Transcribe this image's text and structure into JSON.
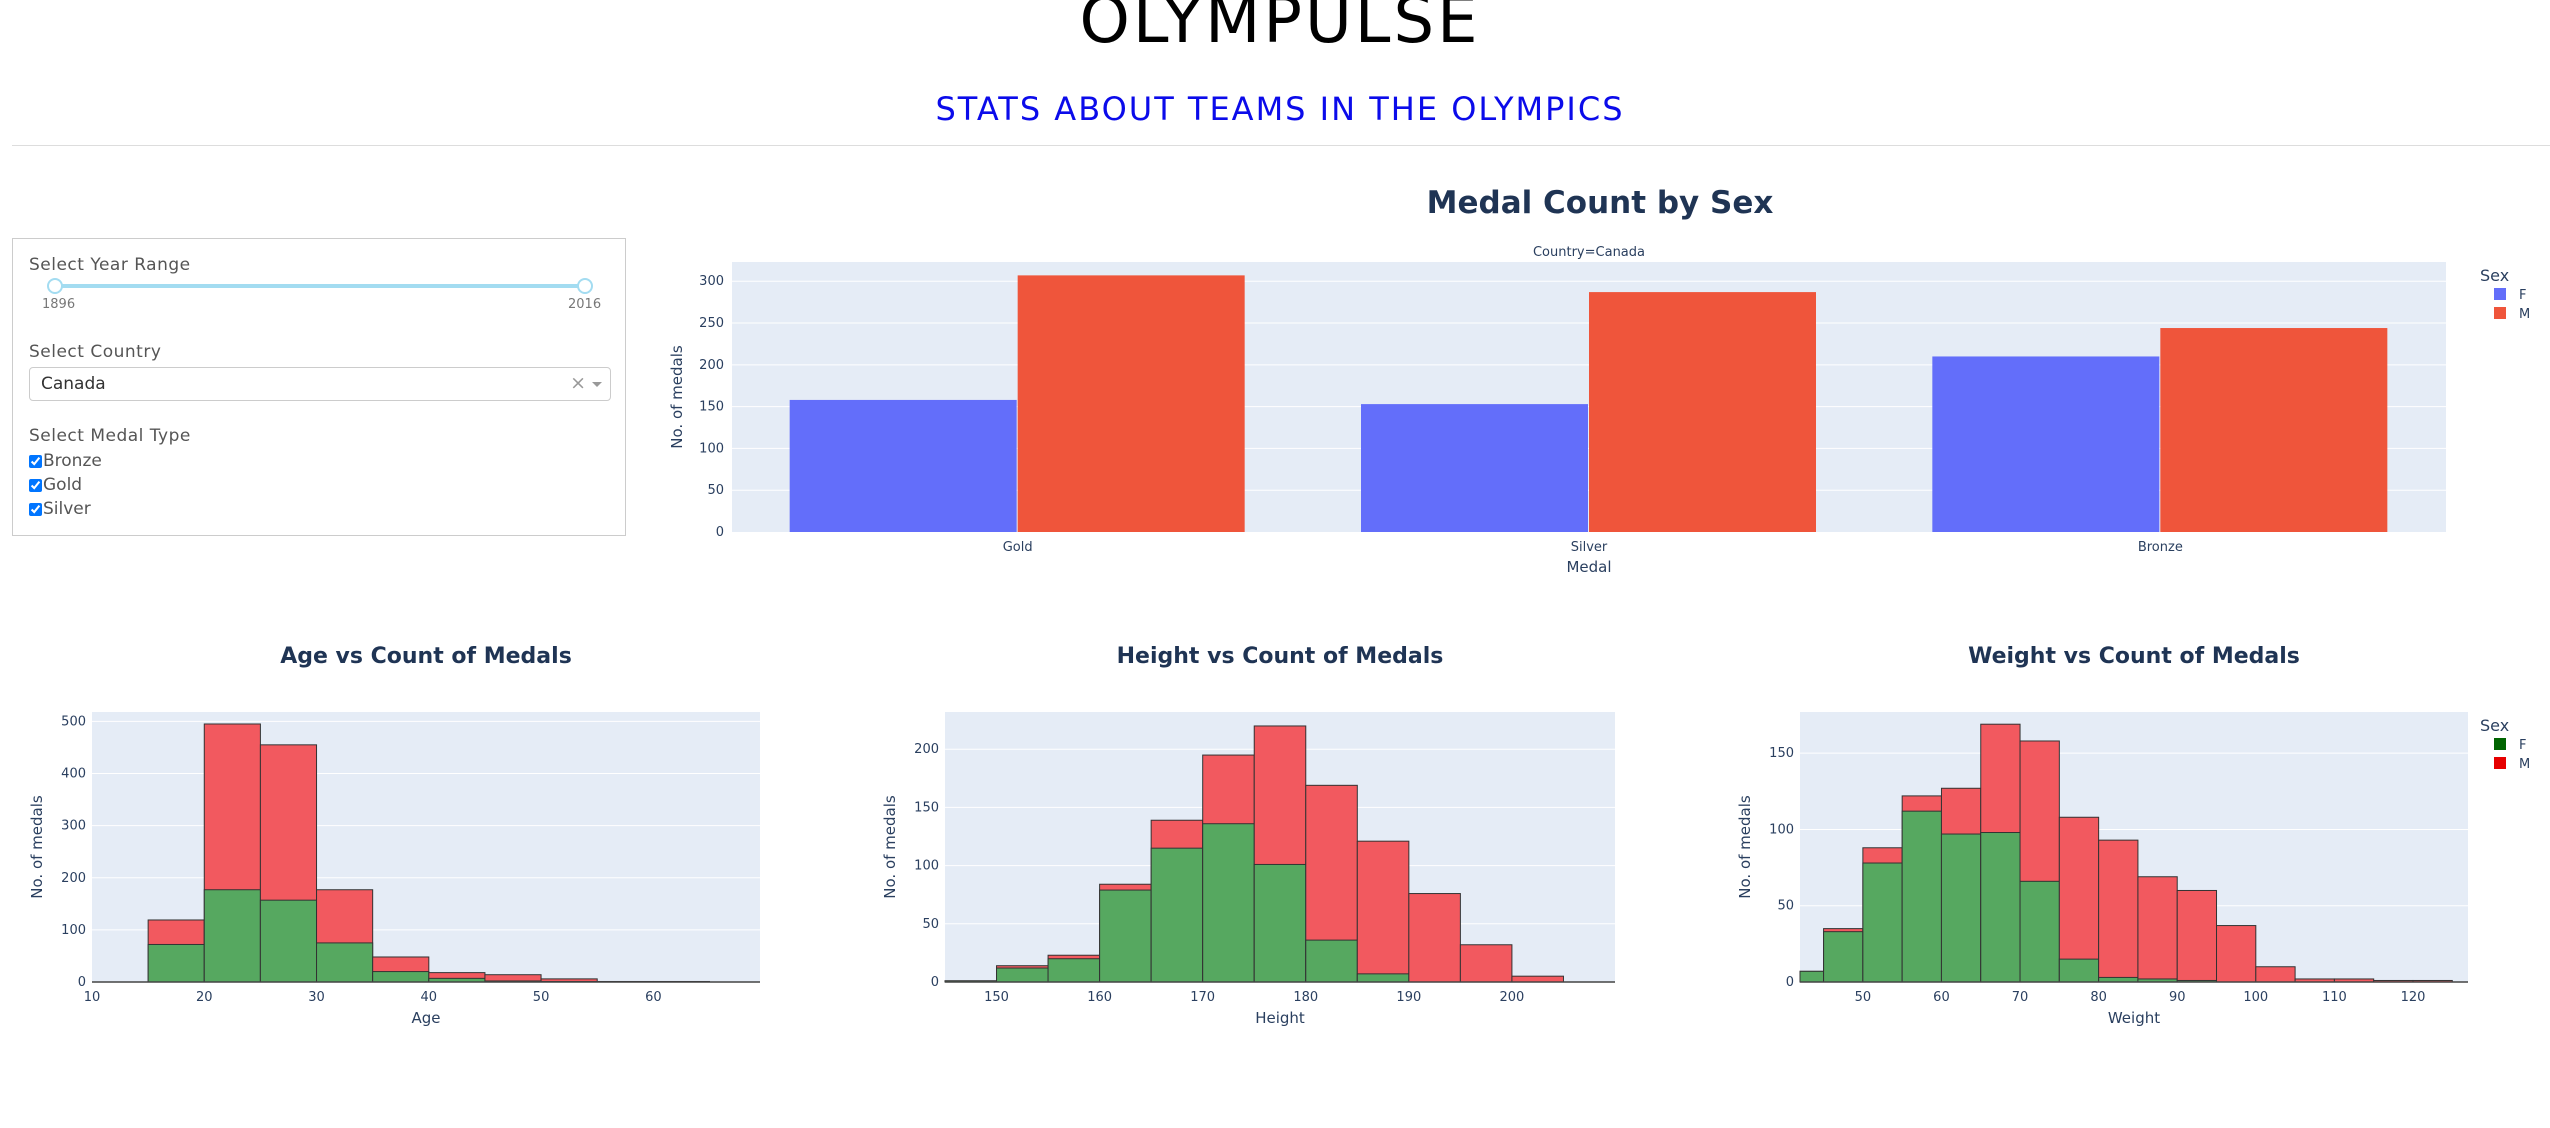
{
  "header": {
    "app_title": "OLYMPULSE",
    "subtitle": "STATS ABOUT TEAMS IN THE OLYMPICS"
  },
  "controls": {
    "year_range_label": "Select Year Range",
    "year_min": "1896",
    "year_max": "2016",
    "country_label": "Select Country",
    "country_value": "Canada",
    "clear_glyph": "×",
    "medal_type_label": "Select Medal Type",
    "medal_options": [
      {
        "label": "Bronze",
        "checked": true
      },
      {
        "label": "Gold",
        "checked": true
      },
      {
        "label": "Silver",
        "checked": true
      }
    ]
  },
  "colors": {
    "bar_f": "#636efa",
    "bar_m": "#ef553b",
    "hist_f": "#56a860",
    "hist_m": "#f2595f",
    "legend_hist_f": "#006400",
    "legend_hist_m": "#e60000",
    "plot_bg": "#e5ecf6",
    "axis_text": "#2a3f5f",
    "title_text": "#1f3454"
  },
  "chart_data": [
    {
      "id": "medal_sex",
      "type": "bar",
      "title": "Medal Count by Sex",
      "facet_label": "Country=Canada",
      "xlabel": "Medal",
      "ylabel": "No. of medals",
      "categories": [
        "Gold",
        "Silver",
        "Bronze"
      ],
      "series": [
        {
          "name": "F",
          "values": [
            158,
            153,
            210
          ]
        },
        {
          "name": "M",
          "values": [
            307,
            287,
            244
          ]
        }
      ],
      "ylim": [
        0,
        323
      ],
      "yticks": [
        0,
        50,
        100,
        150,
        200,
        250,
        300
      ],
      "legend_title": "Sex",
      "legend_position": "top-right"
    },
    {
      "id": "age",
      "type": "bar",
      "title": "Age vs Count of Medals",
      "xlabel": "Age",
      "ylabel": "No. of medals",
      "bin_start": 10,
      "bin_width": 5,
      "series": [
        {
          "name": "F",
          "values": [
            0,
            72,
            177,
            157,
            75,
            20,
            7,
            2,
            1,
            0,
            0,
            0
          ]
        },
        {
          "name": "M",
          "values": [
            0,
            119,
            495,
            455,
            177,
            48,
            18,
            14,
            6,
            1,
            1,
            0
          ]
        }
      ],
      "xlim": [
        10,
        69.5
      ],
      "ylim": [
        0,
        518
      ],
      "xticks": [
        10,
        20,
        30,
        40,
        50,
        60
      ],
      "yticks": [
        0,
        100,
        200,
        300,
        400,
        500
      ]
    },
    {
      "id": "height",
      "type": "bar",
      "title": "Height vs Count of Medals",
      "xlabel": "Height",
      "ylabel": "No. of medals",
      "bin_start": 145,
      "bin_width": 5,
      "series": [
        {
          "name": "F",
          "values": [
            1,
            12,
            20,
            79,
            115,
            136,
            101,
            36,
            7,
            0,
            0,
            0
          ]
        },
        {
          "name": "M",
          "values": [
            1,
            14,
            23,
            84,
            139,
            195,
            220,
            169,
            121,
            76,
            32,
            5
          ]
        }
      ],
      "xlim": [
        145,
        210
      ],
      "ylim": [
        0,
        232
      ],
      "xticks": [
        150,
        160,
        170,
        180,
        190,
        200
      ],
      "yticks": [
        0,
        50,
        100,
        150,
        200
      ]
    },
    {
      "id": "weight",
      "type": "bar",
      "title": "Weight vs Count of Medals",
      "xlabel": "Weight",
      "ylabel": "No. of medals",
      "bin_start": 40,
      "bin_width": 5,
      "series": [
        {
          "name": "F",
          "values": [
            7,
            33,
            78,
            112,
            97,
            98,
            66,
            15,
            3,
            2,
            1,
            0,
            0,
            0,
            0,
            0,
            0
          ]
        },
        {
          "name": "M",
          "values": [
            7,
            35,
            88,
            122,
            127,
            169,
            158,
            108,
            93,
            69,
            60,
            37,
            10,
            2,
            2,
            1,
            1
          ]
        }
      ],
      "xlim": [
        42,
        127
      ],
      "ylim": [
        0,
        177
      ],
      "xticks": [
        50,
        60,
        70,
        80,
        90,
        100,
        110,
        120
      ],
      "yticks": [
        0,
        50,
        100,
        150
      ],
      "legend_title": "Sex",
      "legend_position": "top-right"
    }
  ]
}
